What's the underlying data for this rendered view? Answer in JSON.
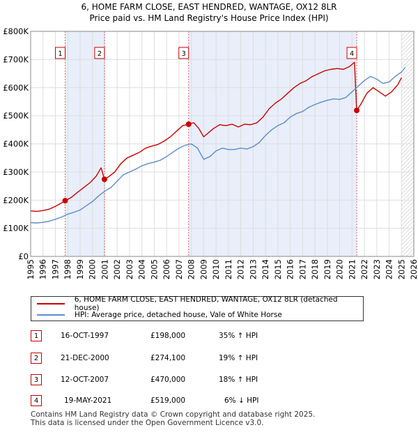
{
  "chart_data": {
    "type": "line",
    "title": "6, HOME FARM CLOSE, EAST HENDRED, WANTAGE, OX12 8LR",
    "subtitle": "Price paid vs. HM Land Registry's House Price Index (HPI)",
    "xlim": [
      1995,
      2026
    ],
    "ylim": [
      0,
      800000
    ],
    "x_ticks": [
      1995,
      1996,
      1997,
      1998,
      1999,
      2000,
      2001,
      2002,
      2003,
      2004,
      2005,
      2006,
      2007,
      2008,
      2009,
      2010,
      2011,
      2012,
      2013,
      2014,
      2015,
      2016,
      2017,
      2018,
      2019,
      2020,
      2021,
      2022,
      2023,
      2024,
      2025,
      2026
    ],
    "y_ticks": [
      {
        "value": 0,
        "label": "£0"
      },
      {
        "value": 100000,
        "label": "£100K"
      },
      {
        "value": 200000,
        "label": "£200K"
      },
      {
        "value": 300000,
        "label": "£300K"
      },
      {
        "value": 400000,
        "label": "£400K"
      },
      {
        "value": 500000,
        "label": "£500K"
      },
      {
        "value": 600000,
        "label": "£600K"
      },
      {
        "value": 700000,
        "label": "£700K"
      },
      {
        "value": 800000,
        "label": "£800K"
      }
    ],
    "grid": true,
    "shaded_periods": [
      [
        1997.79,
        2000.97
      ],
      [
        2007.78,
        2021.38
      ]
    ],
    "future_hatch_start": 2025.0,
    "series": [
      {
        "name": "6, HOME FARM CLOSE, EAST HENDRED, WANTAGE, OX12 8LR (detached house)",
        "color": "#cc0000",
        "points": [
          [
            1995.0,
            162000
          ],
          [
            1995.5,
            160000
          ],
          [
            1996.0,
            163000
          ],
          [
            1996.5,
            168000
          ],
          [
            1997.0,
            178000
          ],
          [
            1997.5,
            190000
          ],
          [
            1997.79,
            198000
          ],
          [
            1998.3,
            210000
          ],
          [
            1998.8,
            228000
          ],
          [
            1999.3,
            245000
          ],
          [
            1999.8,
            262000
          ],
          [
            2000.3,
            285000
          ],
          [
            2000.7,
            315000
          ],
          [
            2000.97,
            274100
          ],
          [
            2001.3,
            283000
          ],
          [
            2001.8,
            300000
          ],
          [
            2002.3,
            330000
          ],
          [
            2002.8,
            350000
          ],
          [
            2003.3,
            360000
          ],
          [
            2003.8,
            370000
          ],
          [
            2004.3,
            385000
          ],
          [
            2004.8,
            392000
          ],
          [
            2005.3,
            398000
          ],
          [
            2005.8,
            410000
          ],
          [
            2006.3,
            425000
          ],
          [
            2006.8,
            445000
          ],
          [
            2007.3,
            465000
          ],
          [
            2007.78,
            470000
          ],
          [
            2008.2,
            475000
          ],
          [
            2008.6,
            455000
          ],
          [
            2009.0,
            425000
          ],
          [
            2009.4,
            440000
          ],
          [
            2009.8,
            455000
          ],
          [
            2010.3,
            468000
          ],
          [
            2010.8,
            465000
          ],
          [
            2011.3,
            470000
          ],
          [
            2011.8,
            460000
          ],
          [
            2012.3,
            470000
          ],
          [
            2012.8,
            468000
          ],
          [
            2013.3,
            475000
          ],
          [
            2013.8,
            495000
          ],
          [
            2014.3,
            525000
          ],
          [
            2014.8,
            545000
          ],
          [
            2015.3,
            560000
          ],
          [
            2015.8,
            580000
          ],
          [
            2016.3,
            600000
          ],
          [
            2016.8,
            615000
          ],
          [
            2017.3,
            625000
          ],
          [
            2017.8,
            640000
          ],
          [
            2018.3,
            650000
          ],
          [
            2018.8,
            660000
          ],
          [
            2019.3,
            665000
          ],
          [
            2019.8,
            668000
          ],
          [
            2020.3,
            665000
          ],
          [
            2020.8,
            675000
          ],
          [
            2021.2,
            690000
          ],
          [
            2021.38,
            519000
          ],
          [
            2021.7,
            540000
          ],
          [
            2022.2,
            580000
          ],
          [
            2022.7,
            600000
          ],
          [
            2023.2,
            585000
          ],
          [
            2023.7,
            570000
          ],
          [
            2024.2,
            585000
          ],
          [
            2024.7,
            610000
          ],
          [
            2025.0,
            635000
          ]
        ]
      },
      {
        "name": "HPI: Average price, detached house, Vale of White Horse",
        "color": "#5b8ccc",
        "points": [
          [
            1995.0,
            120000
          ],
          [
            1995.5,
            119000
          ],
          [
            1996.0,
            121000
          ],
          [
            1996.5,
            125000
          ],
          [
            1997.0,
            132000
          ],
          [
            1997.5,
            140000
          ],
          [
            1998.0,
            150000
          ],
          [
            1998.5,
            157000
          ],
          [
            1999.0,
            165000
          ],
          [
            1999.5,
            180000
          ],
          [
            2000.0,
            195000
          ],
          [
            2000.5,
            215000
          ],
          [
            2001.0,
            232000
          ],
          [
            2001.5,
            245000
          ],
          [
            2002.0,
            268000
          ],
          [
            2002.5,
            290000
          ],
          [
            2003.0,
            300000
          ],
          [
            2003.5,
            310000
          ],
          [
            2004.0,
            322000
          ],
          [
            2004.5,
            330000
          ],
          [
            2005.0,
            335000
          ],
          [
            2005.5,
            342000
          ],
          [
            2006.0,
            355000
          ],
          [
            2006.5,
            370000
          ],
          [
            2007.0,
            385000
          ],
          [
            2007.5,
            395000
          ],
          [
            2008.0,
            400000
          ],
          [
            2008.5,
            385000
          ],
          [
            2009.0,
            345000
          ],
          [
            2009.5,
            355000
          ],
          [
            2010.0,
            375000
          ],
          [
            2010.5,
            385000
          ],
          [
            2011.0,
            380000
          ],
          [
            2011.5,
            380000
          ],
          [
            2012.0,
            385000
          ],
          [
            2012.5,
            382000
          ],
          [
            2013.0,
            390000
          ],
          [
            2013.5,
            405000
          ],
          [
            2014.0,
            430000
          ],
          [
            2014.5,
            450000
          ],
          [
            2015.0,
            465000
          ],
          [
            2015.5,
            475000
          ],
          [
            2016.0,
            495000
          ],
          [
            2016.5,
            508000
          ],
          [
            2017.0,
            515000
          ],
          [
            2017.5,
            530000
          ],
          [
            2018.0,
            540000
          ],
          [
            2018.5,
            548000
          ],
          [
            2019.0,
            555000
          ],
          [
            2019.5,
            560000
          ],
          [
            2020.0,
            558000
          ],
          [
            2020.5,
            565000
          ],
          [
            2021.0,
            585000
          ],
          [
            2021.5,
            605000
          ],
          [
            2022.0,
            625000
          ],
          [
            2022.5,
            640000
          ],
          [
            2023.0,
            630000
          ],
          [
            2023.5,
            615000
          ],
          [
            2024.0,
            620000
          ],
          [
            2024.5,
            640000
          ],
          [
            2025.0,
            655000
          ],
          [
            2025.3,
            672000
          ]
        ]
      }
    ],
    "sales": [
      {
        "id": "1",
        "x": 1997.79,
        "price": 198000,
        "date": "16-OCT-1997",
        "price_label": "£198,000",
        "hpi": "35% ↑ HPI"
      },
      {
        "id": "2",
        "x": 2000.97,
        "price": 274100,
        "date": "21-DEC-2000",
        "price_label": "£274,100",
        "hpi": "19% ↑ HPI"
      },
      {
        "id": "3",
        "x": 2007.78,
        "price": 470000,
        "date": "12-OCT-2007",
        "price_label": "£470,000",
        "hpi": "18% ↑ HPI"
      },
      {
        "id": "4",
        "x": 2021.38,
        "price": 519000,
        "date": "19-MAY-2021",
        "price_label": "£519,000",
        "hpi": "6% ↓ HPI"
      }
    ]
  },
  "legend": {
    "property_label": "6, HOME FARM CLOSE, EAST HENDRED, WANTAGE, OX12 8LR (detached house)",
    "hpi_label": "HPI: Average price, detached house, Vale of White Horse"
  },
  "footer": {
    "line1": "Contains HM Land Registry data © Crown copyright and database right 2025.",
    "line2": "This data is licensed under the Open Government Licence v3.0."
  }
}
